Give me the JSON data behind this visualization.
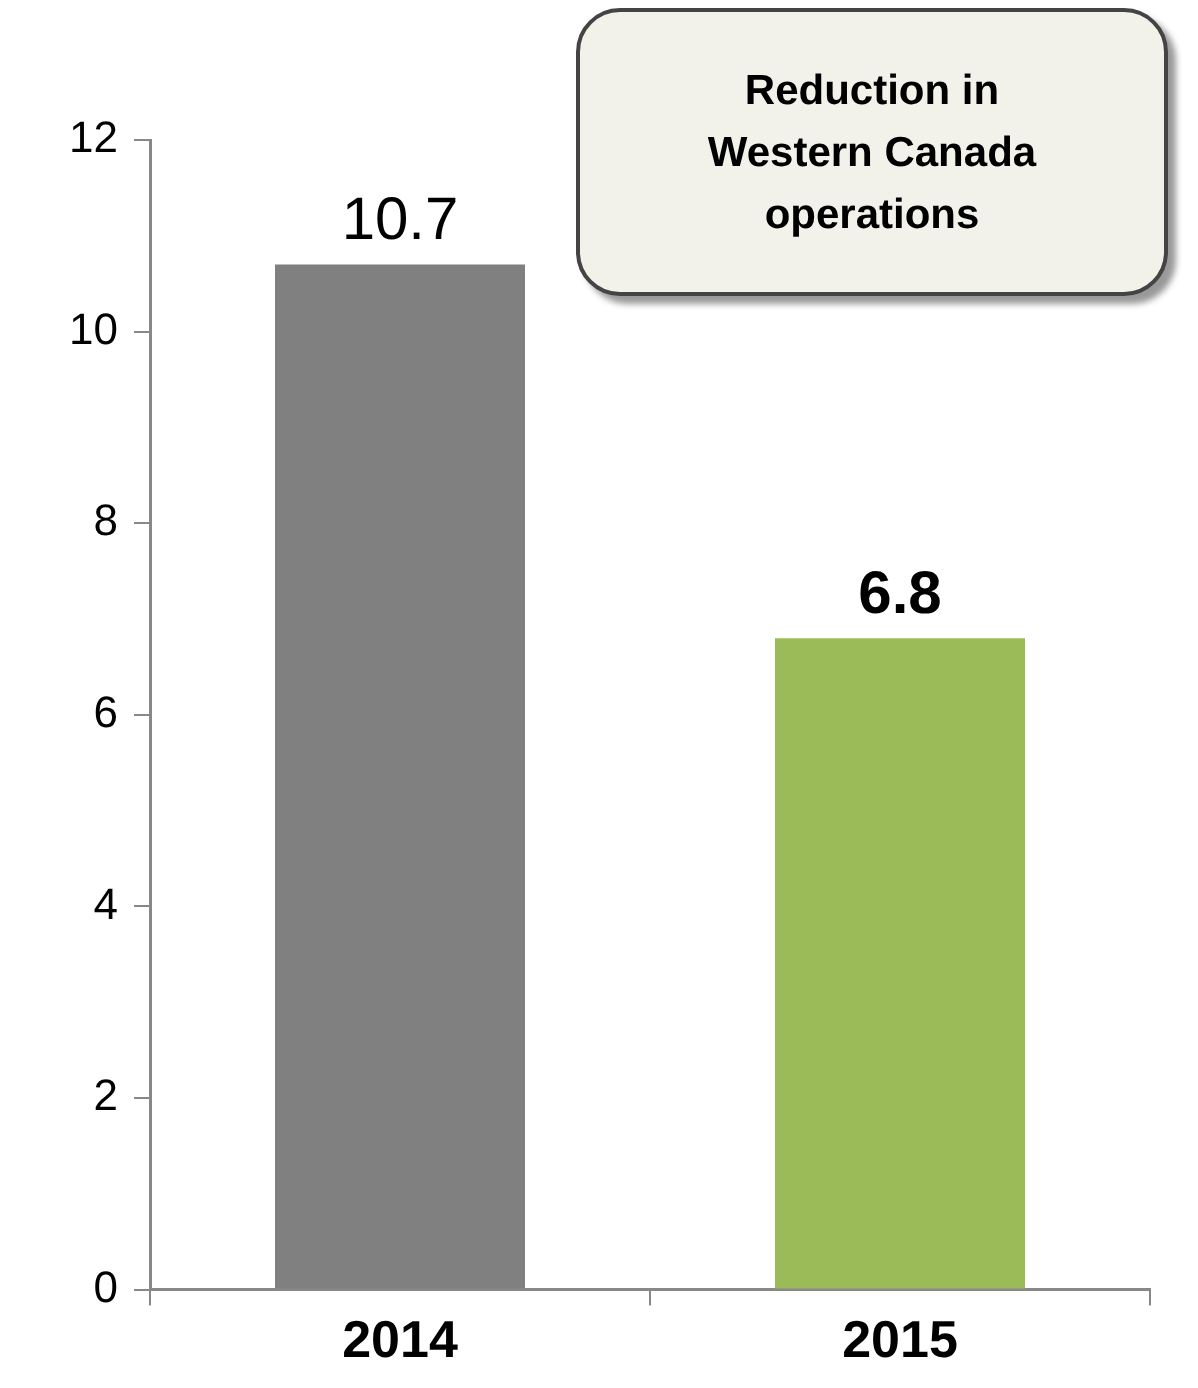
{
  "chart_data": {
    "type": "bar",
    "categories": [
      "2014",
      "2015"
    ],
    "values": [
      10.7,
      6.8
    ],
    "colors": [
      "#808080",
      "#9bbb59"
    ],
    "ylim": [
      0,
      12
    ],
    "yticks": [
      0,
      2,
      4,
      6,
      8,
      10,
      12
    ],
    "grid": false,
    "legend": false,
    "data_labels": true,
    "annotations": [
      "Reduction in Western Canada operations"
    ]
  }
}
